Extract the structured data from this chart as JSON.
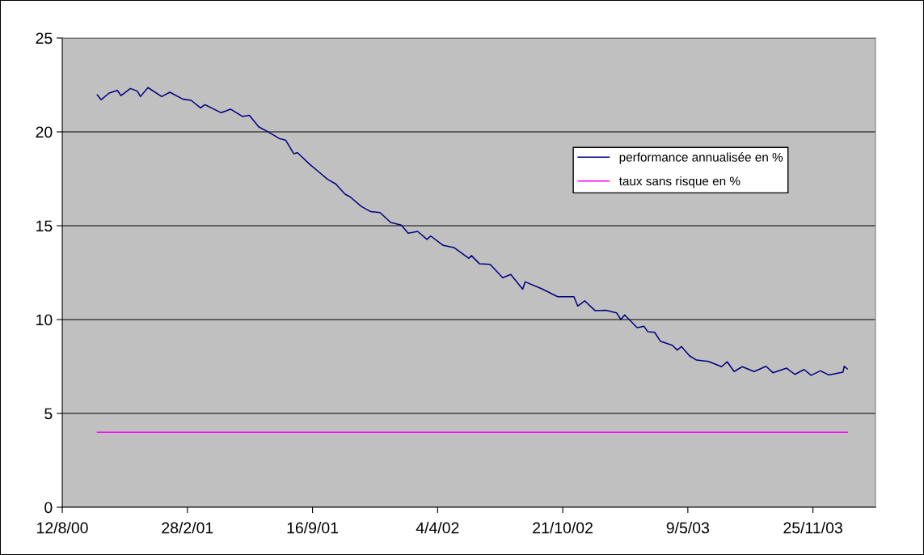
{
  "chart_data": {
    "type": "line",
    "xlim": [
      "2000-08-12",
      "2004-03-04"
    ],
    "xticks": [
      {
        "value": "2000-08-12",
        "label": "12/8/00"
      },
      {
        "value": "2001-02-28",
        "label": "28/2/01"
      },
      {
        "value": "2001-09-16",
        "label": "16/9/01"
      },
      {
        "value": "2002-04-04",
        "label": "4/4/02"
      },
      {
        "value": "2002-10-21",
        "label": "21/10/02"
      },
      {
        "value": "2003-05-09",
        "label": "9/5/03"
      },
      {
        "value": "2003-11-25",
        "label": "25/11/03"
      }
    ],
    "ylim": [
      0,
      25
    ],
    "yticks": [
      0,
      5,
      10,
      15,
      20,
      25
    ],
    "grid": "y",
    "legend": "top right",
    "series": [
      {
        "name": "performance annualisée en %",
        "color": "#000080",
        "x": [
          "2000-10-07",
          "2000-10-13",
          "2000-10-26",
          "2000-11-08",
          "2000-11-14",
          "2000-11-29",
          "2000-12-10",
          "2000-12-15",
          "2000-12-27",
          "2001-01-18",
          "2001-01-31",
          "2001-02-21",
          "2001-03-06",
          "2001-03-21",
          "2001-03-28",
          "2001-04-23",
          "2001-05-08",
          "2001-05-27",
          "2001-06-07",
          "2001-06-22",
          "2001-07-09",
          "2001-07-26",
          "2001-08-04",
          "2001-08-17",
          "2001-08-23",
          "2001-09-12",
          "2001-09-25",
          "2001-10-10",
          "2001-10-23",
          "2001-11-07",
          "2001-11-15",
          "2001-12-03",
          "2001-12-18",
          "2002-01-02",
          "2002-01-19",
          "2002-02-05",
          "2002-02-16",
          "2002-03-03",
          "2002-03-18",
          "2002-03-24",
          "2002-04-13",
          "2002-04-30",
          "2002-05-24",
          "2002-05-28",
          "2002-06-10",
          "2002-06-27",
          "2002-07-17",
          "2002-07-30",
          "2002-08-18",
          "2002-08-22",
          "2002-09-17",
          "2002-10-13",
          "2002-11-08",
          "2002-11-14",
          "2002-11-25",
          "2002-12-12",
          "2002-12-29",
          "2003-01-15",
          "2003-01-22",
          "2003-01-28",
          "2003-02-17",
          "2003-02-28",
          "2003-03-06",
          "2003-03-17",
          "2003-03-26",
          "2003-04-14",
          "2003-04-22",
          "2003-04-29",
          "2003-05-12",
          "2003-05-23",
          "2003-06-11",
          "2003-07-02",
          "2003-07-11",
          "2003-07-22",
          "2003-08-04",
          "2003-08-23",
          "2003-09-11",
          "2003-09-22",
          "2003-10-14",
          "2003-10-27",
          "2003-11-11",
          "2003-11-22",
          "2003-12-07",
          "2003-12-20",
          "2004-01-12",
          "2004-01-14",
          "2004-01-19"
        ],
        "values": [
          21.97,
          21.71,
          22.07,
          22.21,
          21.93,
          22.31,
          22.17,
          21.88,
          22.36,
          21.88,
          22.11,
          21.74,
          21.68,
          21.28,
          21.45,
          21.02,
          21.21,
          20.82,
          20.88,
          20.27,
          19.96,
          19.63,
          19.56,
          18.84,
          18.89,
          18.26,
          17.9,
          17.47,
          17.23,
          16.68,
          16.54,
          16.03,
          15.75,
          15.7,
          15.17,
          15.03,
          14.6,
          14.7,
          14.27,
          14.45,
          13.95,
          13.84,
          13.26,
          13.41,
          12.97,
          12.94,
          12.23,
          12.4,
          11.62,
          12.01,
          11.65,
          11.22,
          11.22,
          10.72,
          11.0,
          10.47,
          10.5,
          10.36,
          10.0,
          10.25,
          9.57,
          9.64,
          9.35,
          9.32,
          8.85,
          8.63,
          8.38,
          8.56,
          8.06,
          7.84,
          7.77,
          7.49,
          7.75,
          7.23,
          7.49,
          7.23,
          7.51,
          7.17,
          7.41,
          7.08,
          7.34,
          7.03,
          7.27,
          7.05,
          7.2,
          7.51,
          7.37
        ]
      },
      {
        "name": "taux sans risque en %",
        "color": "#ff00ff",
        "x": [
          "2000-10-07",
          "2004-01-19"
        ],
        "values": [
          4,
          4
        ]
      }
    ]
  }
}
